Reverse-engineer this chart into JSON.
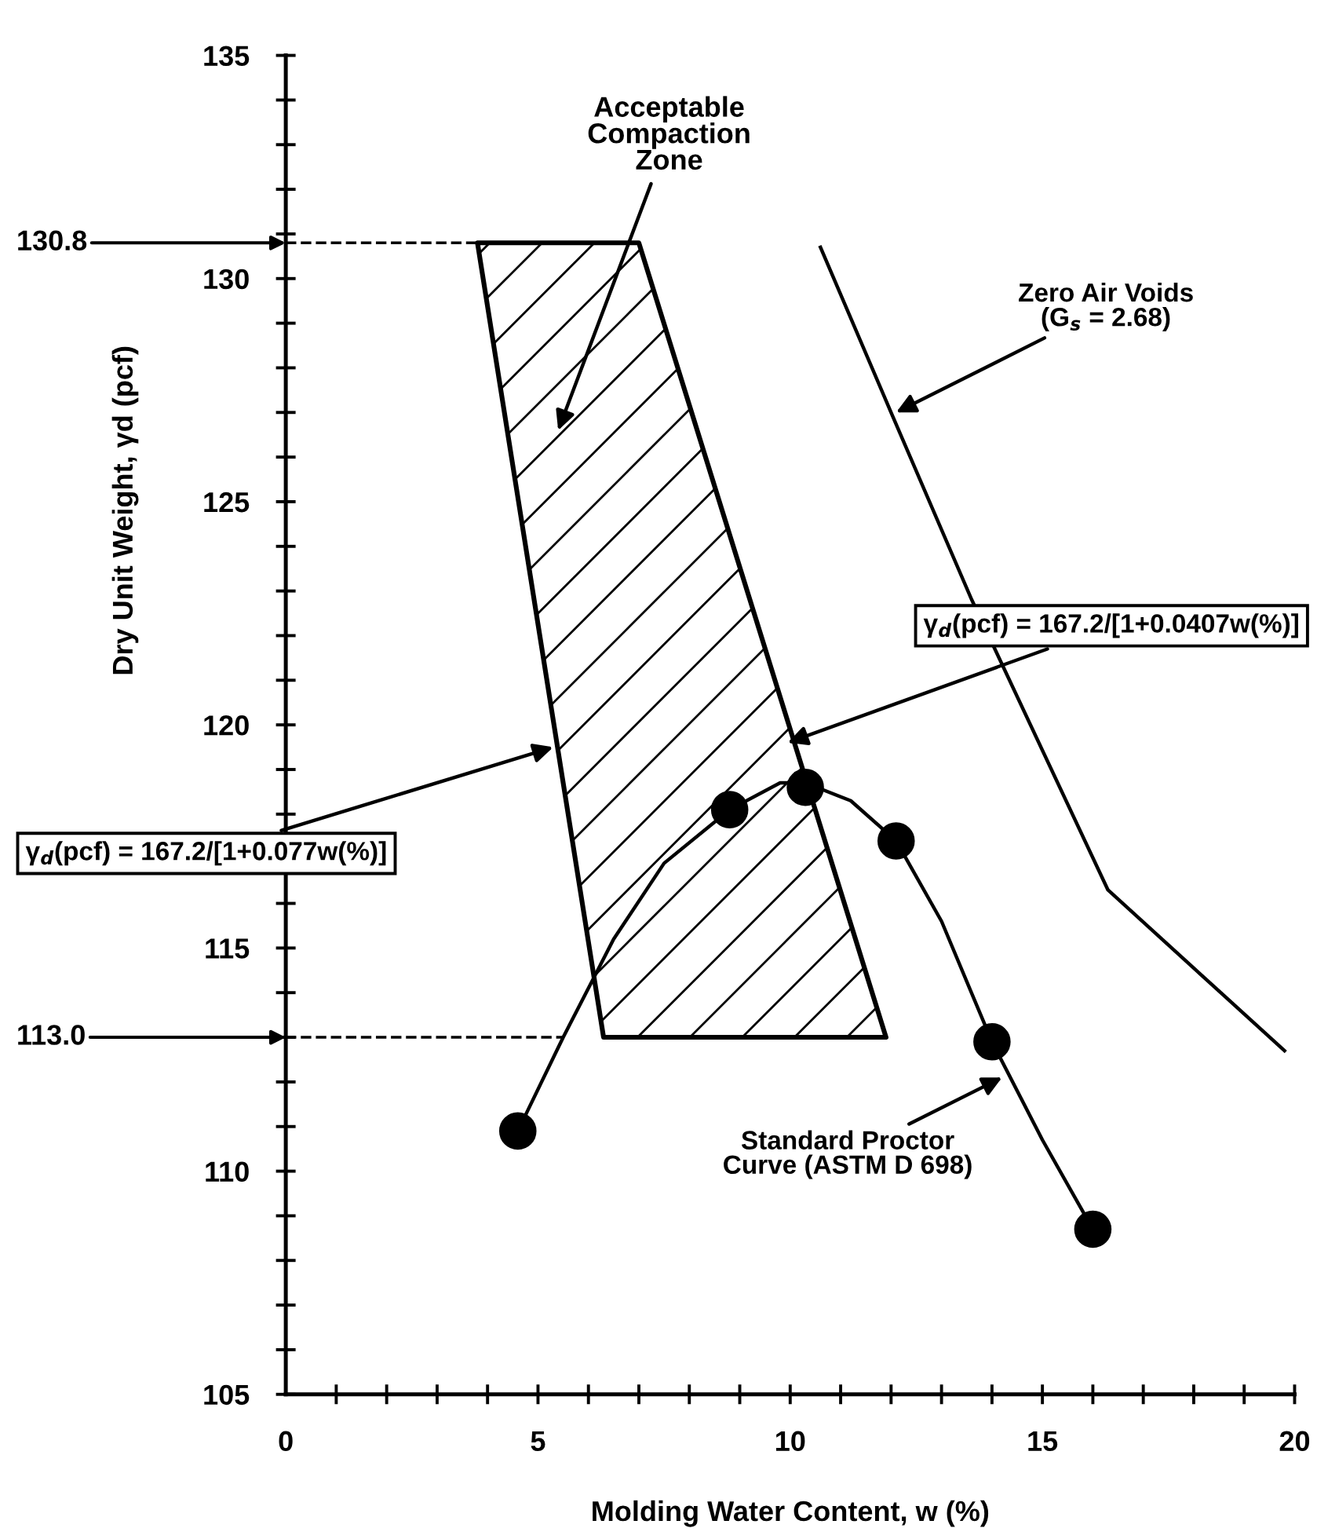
{
  "chart_data": {
    "type": "scatter",
    "xlabel": "Molding Water Content, w (%)",
    "ylabel": "Dry Unit Weight, γd (pcf)",
    "xlim": [
      0,
      20
    ],
    "ylim": [
      105,
      135
    ],
    "xticks": [
      0,
      {
        "value": 1,
        "label": null
      },
      {
        "value": 2,
        "label": null
      },
      {
        "value": 3,
        "label": null
      },
      {
        "value": 4,
        "label": null
      },
      5,
      {
        "value": 6,
        "label": null
      },
      {
        "value": 7,
        "label": null
      },
      {
        "value": 8,
        "label": null
      },
      {
        "value": 9,
        "label": null
      },
      10,
      {
        "value": 11,
        "label": null
      },
      {
        "value": 12,
        "label": null
      },
      {
        "value": 13,
        "label": null
      },
      {
        "value": 14,
        "label": null
      },
      15,
      {
        "value": 16,
        "label": null
      },
      {
        "value": 17,
        "label": null
      },
      {
        "value": 18,
        "label": null
      },
      {
        "value": 19,
        "label": null
      },
      20
    ],
    "yticks": [
      105,
      {
        "value": 106,
        "label": null
      },
      {
        "value": 107,
        "label": null
      },
      {
        "value": 108,
        "label": null
      },
      {
        "value": 109,
        "label": null
      },
      110,
      {
        "value": 111,
        "label": null
      },
      {
        "value": 112,
        "label": null
      },
      {
        "value": 113,
        "label": null
      },
      {
        "value": 114,
        "label": null
      },
      115,
      {
        "value": 116,
        "label": null
      },
      {
        "value": 117,
        "label": null
      },
      {
        "value": 118,
        "label": null
      },
      {
        "value": 119,
        "label": null
      },
      120,
      {
        "value": 121,
        "label": null
      },
      {
        "value": 122,
        "label": null
      },
      {
        "value": 123,
        "label": null
      },
      {
        "value": 124,
        "label": null
      },
      125,
      {
        "value": 126,
        "label": null
      },
      {
        "value": 127,
        "label": null
      },
      {
        "value": 128,
        "label": null
      },
      {
        "value": 129,
        "label": null
      },
      130,
      {
        "value": 131,
        "label": null
      },
      {
        "value": 132,
        "label": null
      },
      {
        "value": 133,
        "label": null
      },
      {
        "value": 134,
        "label": null
      },
      135
    ],
    "grid": false,
    "series": [
      {
        "color": "#000000",
        "marker": "circle",
        "x": [
          4.6,
          8.8,
          10.3,
          12.1,
          14.0,
          16.0
        ],
        "values": [
          110.9,
          118.1,
          118.6,
          117.4,
          112.9,
          108.7
        ]
      },
      {
        "type": "line",
        "color": "#000000",
        "marker": "none",
        "line_style": "solid",
        "x": [
          4.6,
          5.5,
          6.5,
          7.5,
          8.8,
          9.8,
          10.3,
          11.2,
          12.1,
          13.0,
          14.0,
          15.0,
          16.0
        ],
        "values": [
          110.9,
          113.0,
          115.2,
          116.9,
          118.1,
          118.7,
          118.7,
          118.3,
          117.4,
          115.6,
          112.9,
          110.7,
          108.7
        ]
      },
      {
        "type": "area",
        "color": "#000000",
        "line_style": "solid",
        "x": [
          3.8,
          7.0,
          11.9,
          6.3,
          3.8
        ],
        "values": [
          130.8,
          130.8,
          113.0,
          113.0,
          130.8
        ]
      },
      {
        "type": "line",
        "color": "#000000",
        "marker": "none",
        "line_style": "solid",
        "x": [
          10.6,
          12.0,
          13.6,
          16.3,
          19.8
        ],
        "values": [
          130.7,
          127.0,
          122.8,
          116.3,
          112.7
        ]
      }
    ],
    "ref_lines": [
      {
        "axis": "y",
        "value": 130.8,
        "label": "130.8",
        "color": "#000000",
        "line_style": "dashed"
      },
      {
        "axis": "y",
        "value": 113.0,
        "label": "113.0",
        "color": "#000000",
        "line_style": "dashed"
      }
    ],
    "annotations": [
      "Acceptable\nCompaction\nZone",
      {
        "text": "Zero Air Voids\n(G$_{s}$ = 2.68)",
        "x": 12.1,
        "y": 127.0
      },
      {
        "text": "γ$_{d}$(pcf) = 167.2/[1+0.0407w(%)]",
        "x": 9.95,
        "y": 119.6
      },
      {
        "text": "γ$_{d}$(pcf) = 167.2/[1+0.077w(%)]",
        "x": 5.3,
        "y": 119.5
      },
      {
        "text": "Standard Proctor\nCurve (ASTM D 698)",
        "x": 14.2,
        "y": 112.1
      }
    ]
  }
}
